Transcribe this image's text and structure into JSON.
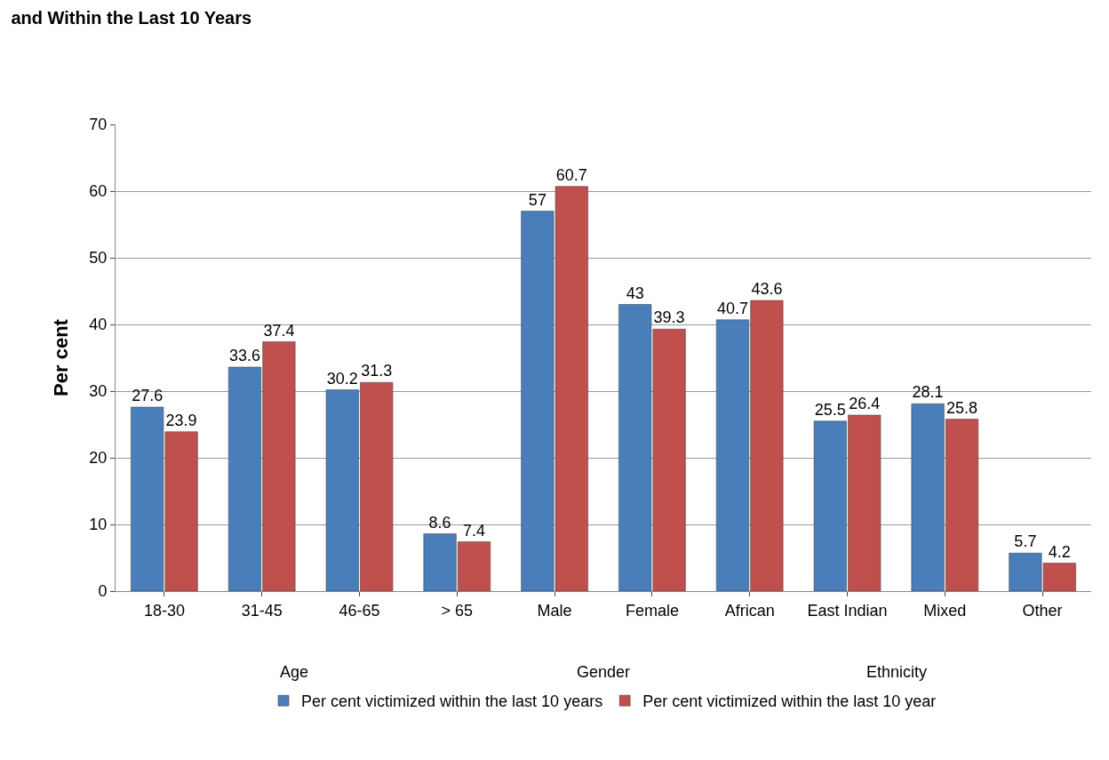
{
  "chart_data": {
    "type": "bar",
    "title": "and Within the Last 10 Years",
    "ylabel": "Per cent",
    "categories": [
      "18-30",
      "31-45",
      "46-65",
      "> 65",
      "Male",
      "Female",
      "African",
      "East Indian",
      "Mixed",
      "Other"
    ],
    "series": [
      {
        "name": "Per cent victimized within the last 10 years",
        "color": "#4a7ebb",
        "values": [
          27.6,
          33.6,
          30.2,
          8.6,
          57,
          43,
          40.7,
          25.5,
          28.1,
          5.7
        ]
      },
      {
        "name": "Per cent victimized within the last 10 year",
        "color": "#c0504d",
        "values": [
          23.9,
          37.4,
          31.3,
          7.4,
          60.7,
          39.3,
          43.6,
          26.4,
          25.8,
          4.2
        ]
      }
    ],
    "annotations": [
      "Age",
      "Gender",
      "Ethnicity"
    ],
    "ylim": [
      0,
      70
    ],
    "yticks": [
      0,
      10,
      20,
      30,
      40,
      50,
      60,
      70
    ],
    "grid": "y",
    "legend": "bottom",
    "data_labels": true
  }
}
